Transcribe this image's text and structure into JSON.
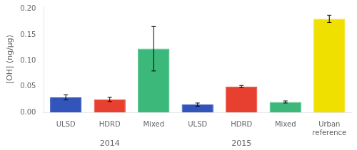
{
  "chart_data": {
    "type": "bar",
    "categories": [
      "ULSD",
      "HDRD",
      "Mixed",
      "ULSD",
      "HDRD",
      "Mixed",
      "Urban\nreference"
    ],
    "values": [
      0.029,
      0.025,
      0.123,
      0.015,
      0.05,
      0.02,
      0.181
    ],
    "errors": [
      0.005,
      0.004,
      0.043,
      0.003,
      0.002,
      0.002,
      0.007
    ],
    "colors": [
      "#3355BB",
      "#E84030",
      "#3CB87A",
      "#3355BB",
      "#E84030",
      "#3CB87A",
      "#F0E000"
    ],
    "ylabel": "[OH] (ng/μg)",
    "ylim": [
      0.0,
      0.205
    ],
    "yticks": [
      {
        "value": 0.0,
        "label": "0.00"
      },
      0.05,
      {
        "value": 0.1,
        "label": "0.10"
      },
      0.15,
      {
        "value": 0.2,
        "label": "0.20"
      }
    ],
    "annotations": [
      {
        "text": "2014",
        "x": 1
      },
      {
        "text": "2015",
        "x": 4
      }
    ],
    "grid": false
  }
}
